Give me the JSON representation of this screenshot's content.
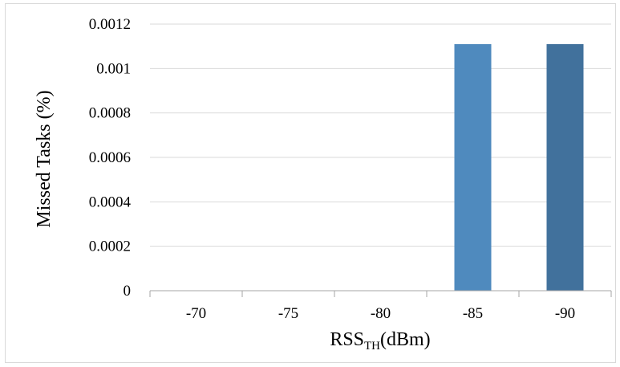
{
  "chart_data": {
    "type": "bar",
    "title": "",
    "categories": [
      "-70",
      "-75",
      "-80",
      "-85",
      "-90"
    ],
    "values": [
      0,
      0,
      0,
      0.00111,
      0.00111
    ],
    "bar_colors": [
      "#4f81bd",
      "#4f81bd",
      "#4f81bd",
      "#4f8abe",
      "#41719c"
    ],
    "xlabel_main": "RSS",
    "xlabel_sub": "TH",
    "xlabel_unit": "(dBm)",
    "ylabel": "Missed Tasks (%)",
    "ylim": [
      0,
      0.0012
    ],
    "yticks": [
      "0",
      "0.0002",
      "0.0004",
      "0.0006",
      "0.0008",
      "0.001",
      "0.0012"
    ],
    "grid": true,
    "legend": "none"
  }
}
